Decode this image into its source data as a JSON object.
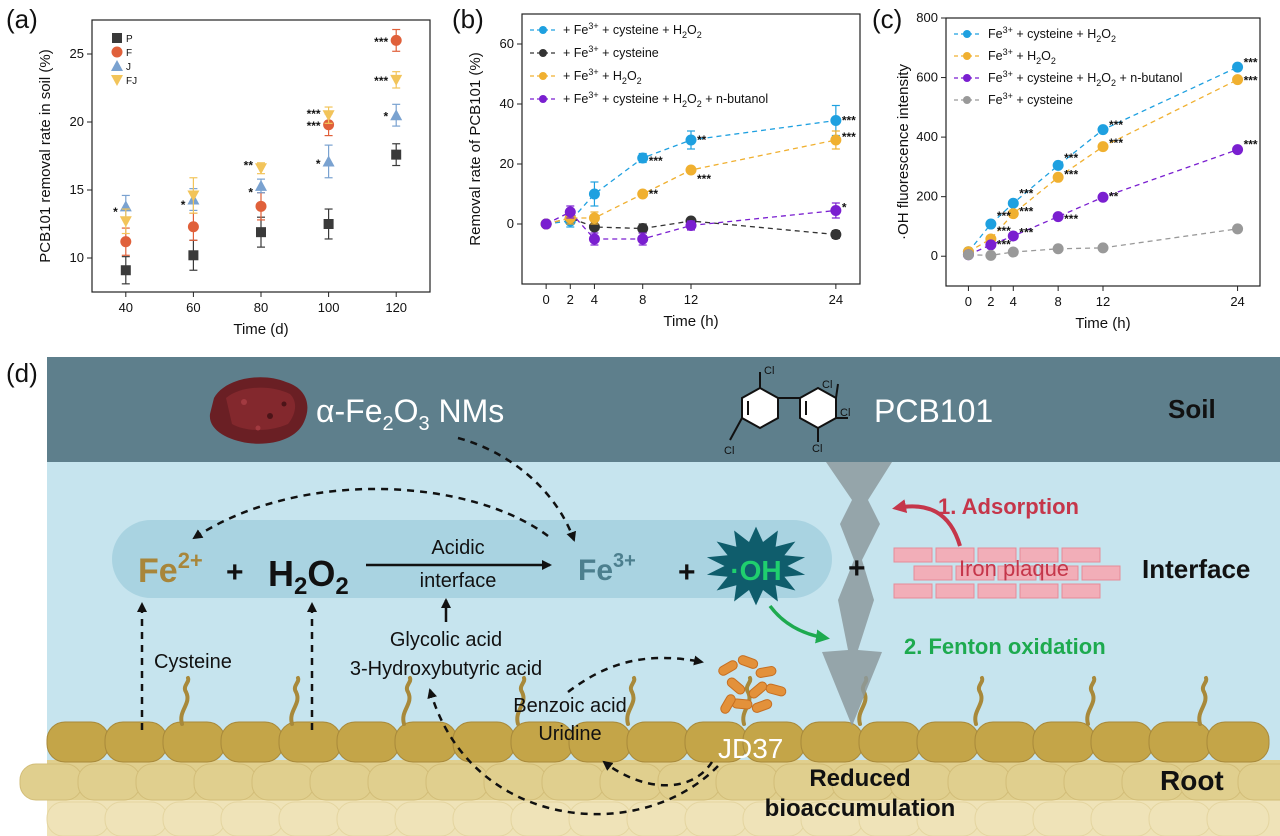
{
  "panels": {
    "a": "(a)",
    "b": "(b)",
    "c": "(c)",
    "d": "(d)"
  },
  "chart_data": [
    {
      "id": "a",
      "type": "scatter",
      "xlabel": "Time (d)",
      "ylabel": "PCB101 removal rate in soil (%)",
      "x": [
        40,
        60,
        80,
        100,
        120
      ],
      "xticks": [
        "40",
        "60",
        "80",
        "100",
        "120"
      ],
      "yticks": [
        "10",
        "15",
        "20",
        "25"
      ],
      "xlim": [
        30,
        130
      ],
      "ylim": [
        7.5,
        27.5
      ],
      "series": [
        {
          "name": "P",
          "color": "#3a3a3a",
          "marker": "square",
          "values": [
            9.1,
            10.2,
            11.9,
            12.5,
            17.6
          ],
          "err": [
            1.0,
            1.1,
            1.1,
            1.1,
            0.8
          ]
        },
        {
          "name": "F",
          "color": "#e0603a",
          "marker": "circle",
          "values": [
            11.2,
            12.3,
            13.8,
            19.8,
            26.0
          ],
          "err": [
            1.0,
            1.0,
            1.0,
            0.8,
            0.8
          ]
        },
        {
          "name": "J",
          "color": "#7aa2d0",
          "marker": "triangle",
          "values": [
            13.8,
            14.3,
            15.3,
            17.1,
            20.5
          ],
          "err": [
            0.8,
            0.8,
            0.5,
            1.2,
            0.8
          ]
        },
        {
          "name": "FJ",
          "color": "#f2c45a",
          "marker": "triangle-down",
          "values": [
            12.7,
            14.6,
            16.6,
            20.5,
            23.1
          ],
          "err": [
            0.9,
            1.3,
            0.4,
            0.6,
            0.6
          ]
        }
      ],
      "annotations": [
        {
          "x": 40,
          "y": 13.4,
          "text": "*"
        },
        {
          "x": 60,
          "y": 13.9,
          "text": "*"
        },
        {
          "x": 80,
          "y": 16.8,
          "text": "**"
        },
        {
          "x": 80,
          "y": 14.8,
          "text": "*"
        },
        {
          "x": 100,
          "y": 20.6,
          "text": "***"
        },
        {
          "x": 100,
          "y": 19.7,
          "text": "***"
        },
        {
          "x": 100,
          "y": 16.9,
          "text": "*"
        },
        {
          "x": 120,
          "y": 25.9,
          "text": "***"
        },
        {
          "x": 120,
          "y": 23.0,
          "text": "***"
        },
        {
          "x": 120,
          "y": 20.4,
          "text": "*"
        }
      ]
    },
    {
      "id": "b",
      "type": "line",
      "xlabel": "Time (h)",
      "ylabel": "Removal rate of PCB101 (%)",
      "x": [
        0,
        2,
        4,
        8,
        12,
        24
      ],
      "xticks": [
        "0",
        "2",
        "4",
        "8",
        "12",
        "24"
      ],
      "yticks": [
        "0",
        "20",
        "40",
        "60"
      ],
      "xlim": [
        -2,
        26
      ],
      "ylim": [
        -20,
        70
      ],
      "legend": [
        {
          "prefix": "+ Fe",
          "sup": "3+",
          "rest": " + cysteine + H",
          "sub": "2",
          "tail": "O",
          "sub2": "2"
        },
        {
          "prefix": "+ Fe",
          "sup": "3+",
          "rest": " + cysteine",
          "sub": "",
          "tail": "",
          "sub2": ""
        },
        {
          "prefix": "+ Fe",
          "sup": "3+",
          "rest": " + H",
          "sub": "2",
          "tail": "O",
          "sub2": "2"
        },
        {
          "prefix": "+ Fe",
          "sup": "3+",
          "rest": " + cysteine + H",
          "sub": "2",
          "tail": "O",
          "sub2": "2",
          "end": " + n-butanol"
        }
      ],
      "series": [
        {
          "name": "+ Fe3+ + cysteine + H2O2",
          "color": "#1ea0e0",
          "values": [
            0,
            1,
            10,
            22,
            28,
            34.5
          ],
          "err": [
            0.8,
            2,
            4,
            1.5,
            3,
            5
          ]
        },
        {
          "name": "+ Fe3+ + cysteine",
          "color": "#333333",
          "values": [
            0,
            2,
            -1,
            -1.5,
            1,
            -3.5
          ],
          "err": [
            0.8,
            2,
            1,
            1.5,
            1,
            1.3
          ]
        },
        {
          "name": "+ Fe3+ + H2O2",
          "color": "#f0b030",
          "values": [
            0,
            2,
            2,
            10,
            18,
            28
          ],
          "err": [
            0.8,
            2,
            2,
            1,
            1,
            3
          ]
        },
        {
          "name": "+ Fe3+ + cysteine + H2O2 + n-butanol",
          "color": "#7a1fd0",
          "values": [
            0,
            4,
            -5,
            -5,
            -0.5,
            4.5
          ],
          "err": [
            0.8,
            2,
            2,
            2,
            1.5,
            2.5
          ]
        }
      ],
      "annotations": [
        {
          "x": 8,
          "y": 21,
          "text": "***"
        },
        {
          "x": 8,
          "y": 10,
          "text": "**"
        },
        {
          "x": 12,
          "y": 28,
          "text": "**"
        },
        {
          "x": 12,
          "y": 15,
          "text": "***"
        },
        {
          "x": 24,
          "y": 34.5,
          "text": "***"
        },
        {
          "x": 24,
          "y": 29,
          "text": "***"
        },
        {
          "x": 24,
          "y": 5.5,
          "text": "*"
        }
      ]
    },
    {
      "id": "c",
      "type": "line",
      "xlabel": "Time (h)",
      "ylabel": "·OH fluorescence intensity",
      "x": [
        0,
        2,
        4,
        8,
        12,
        24
      ],
      "xticks": [
        "0",
        "2",
        "4",
        "8",
        "12",
        "24"
      ],
      "yticks": [
        "0",
        "200",
        "400",
        "600",
        "800"
      ],
      "xlim": [
        -2,
        26
      ],
      "ylim": [
        -100,
        800
      ],
      "series": [
        {
          "name": "Fe3+ + cysteine + H2O2",
          "color": "#1ea0e0",
          "values": [
            15,
            108,
            178,
            305,
            425,
            635
          ]
        },
        {
          "name": "Fe3+ + H2O2",
          "color": "#f0b030",
          "values": [
            15,
            58,
            143,
            265,
            368,
            593
          ]
        },
        {
          "name": "Fe3+ + cysteine + H2O2 + n-butanol",
          "color": "#7a1fd0",
          "values": [
            5,
            38,
            68,
            133,
            198,
            358
          ]
        },
        {
          "name": "Fe3+ + cysteine",
          "color": "#999999",
          "values": [
            5,
            3,
            14,
            25,
            28,
            92
          ]
        }
      ],
      "annotations": [
        {
          "x": 2,
          "y": 135,
          "text": "***"
        },
        {
          "x": 2,
          "y": 85,
          "text": "***"
        },
        {
          "x": 2,
          "y": 40,
          "text": "***"
        },
        {
          "x": 4,
          "y": 210,
          "text": "***"
        },
        {
          "x": 4,
          "y": 150,
          "text": "***"
        },
        {
          "x": 4,
          "y": 80,
          "text": "***"
        },
        {
          "x": 8,
          "y": 330,
          "text": "***"
        },
        {
          "x": 8,
          "y": 275,
          "text": "***"
        },
        {
          "x": 8,
          "y": 125,
          "text": "***"
        },
        {
          "x": 12,
          "y": 440,
          "text": "***"
        },
        {
          "x": 12,
          "y": 380,
          "text": "***"
        },
        {
          "x": 12,
          "y": 200,
          "text": "**"
        },
        {
          "x": 24,
          "y": 650,
          "text": "***"
        },
        {
          "x": 24,
          "y": 590,
          "text": "***"
        },
        {
          "x": 24,
          "y": 375,
          "text": "***"
        }
      ]
    }
  ],
  "diagram": {
    "soil": "Soil",
    "nm_prefix": "α-Fe",
    "nm_sub1": "2",
    "nm_mid": "O",
    "nm_sub2": "3",
    "nm_suffix": " NMs",
    "pcb": "PCB101",
    "cl": "Cl",
    "fe2_base": "Fe",
    "fe2_sup": "2+",
    "plus": "+",
    "h2o2_h": "H",
    "h2o2_sub1": "2",
    "h2o2_o": "O",
    "h2o2_sub2": "2",
    "acidic": "Acidic",
    "interface_word": "interface",
    "fe3_base": "Fe",
    "fe3_sup": "3+",
    "oh": "·OH",
    "adsorption": "1. Adsorption",
    "iron_plaque": "Iron plaque",
    "interface_label": "Interface",
    "fenton": "2. Fenton oxidation",
    "cysteine": "Cysteine",
    "glycolic": "Glycolic acid",
    "hydroxybutyric": "3-Hydroxybutyric acid",
    "benzoic": "Benzoic acid",
    "uridine": "Uridine",
    "jd37": "JD37",
    "reduced": "Reduced",
    "bioaccumulation": "bioaccumulation",
    "root": "Root"
  },
  "colors": {
    "soil_band": "#5e7f8c",
    "water": "#c6e4ee",
    "pill": "#a9d3e1",
    "fe2": "#a8863a",
    "fe3": "#4c7f8e",
    "oh_star": "#0f5d6c",
    "oh_text": "#1fcf6e",
    "adsorption": "#c5364a",
    "fenton": "#1daa4f",
    "plaque": "#f2aeb8",
    "root_cells": "#c4a548",
    "root_layer2": "#e0cf8e",
    "root_layer3": "#efe3b8"
  }
}
